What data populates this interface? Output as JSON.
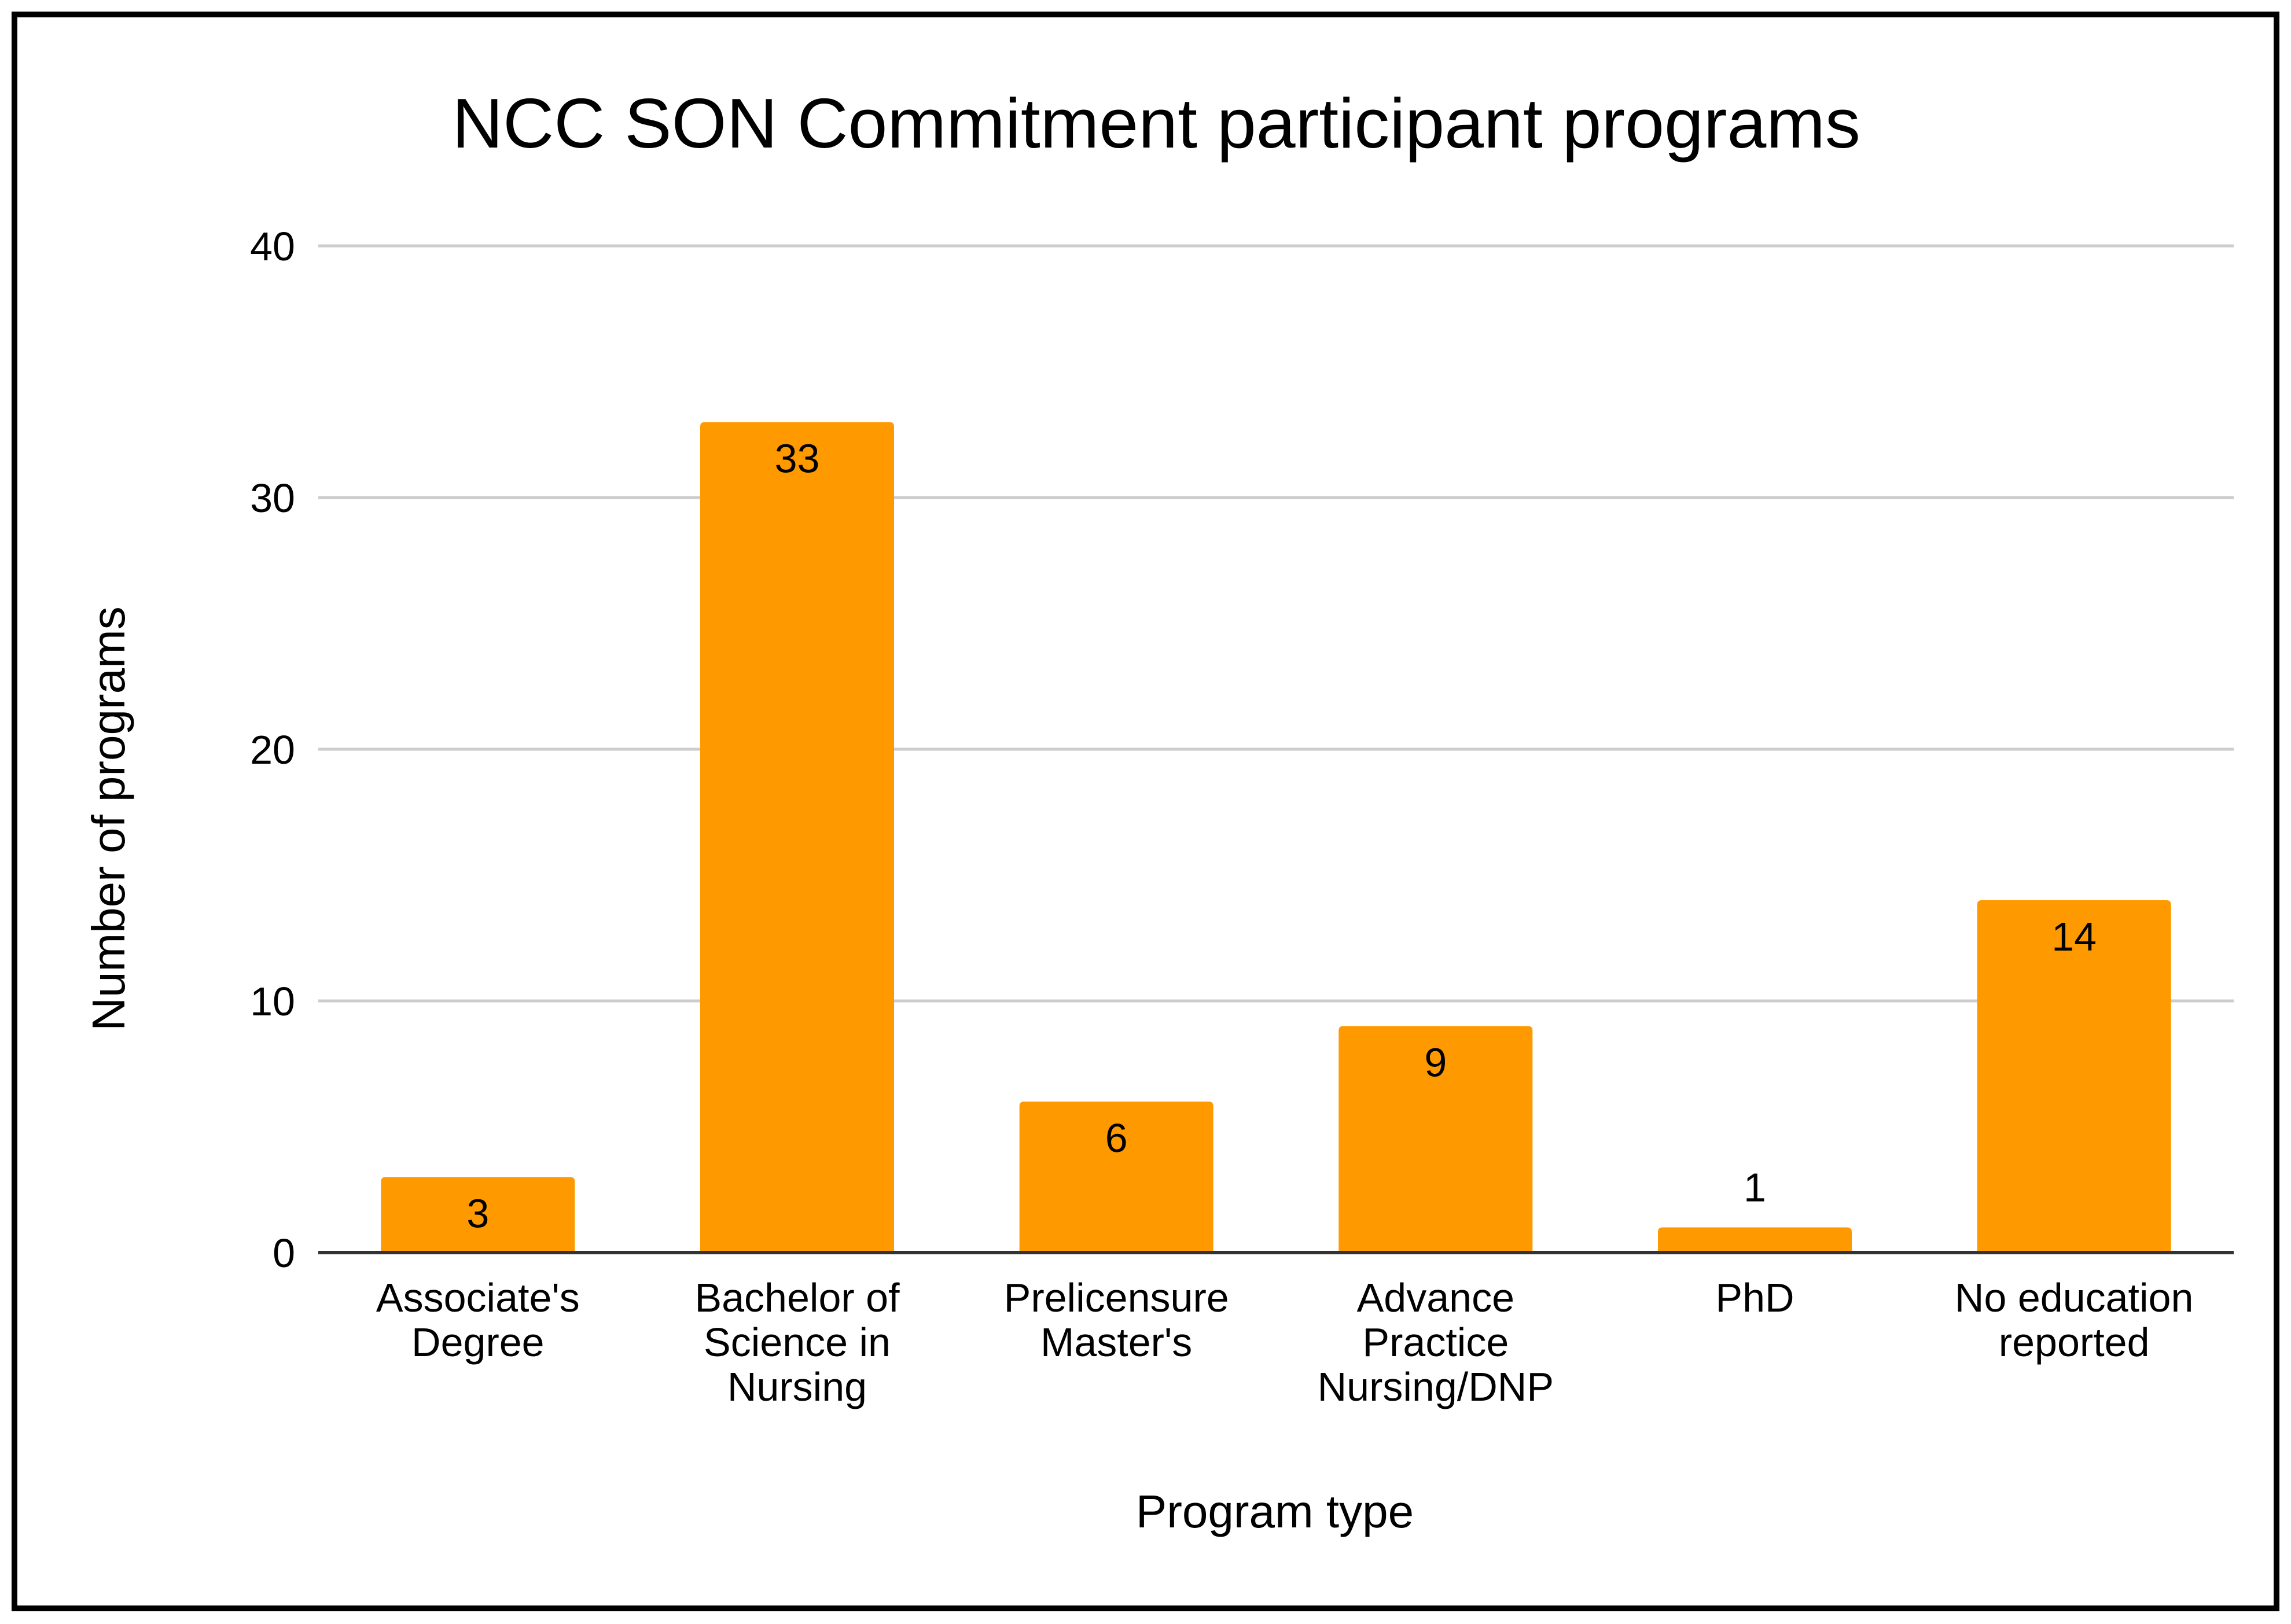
{
  "chart_data": {
    "type": "bar",
    "title": "NCC SON Commitment participant programs",
    "xlabel": "Program type",
    "ylabel": "Number of programs",
    "categories": [
      [
        "Associate's",
        "Degree"
      ],
      [
        "Bachelor of",
        "Science in",
        "Nursing"
      ],
      [
        "Prelicensure",
        "Master's"
      ],
      [
        "Advance",
        "Practice",
        "Nursing/DNP"
      ],
      [
        "PhD"
      ],
      [
        "No education",
        "reported"
      ]
    ],
    "values": [
      3,
      33,
      6,
      9,
      1,
      14
    ],
    "ylim": [
      0,
      40
    ],
    "yticks": [
      0,
      10,
      20,
      30,
      40
    ],
    "grid": true,
    "legend": "none",
    "colors": {
      "bar": "#FF9900",
      "grid": "#CCCCCC",
      "axis": "#333333",
      "text": "#000000"
    }
  }
}
